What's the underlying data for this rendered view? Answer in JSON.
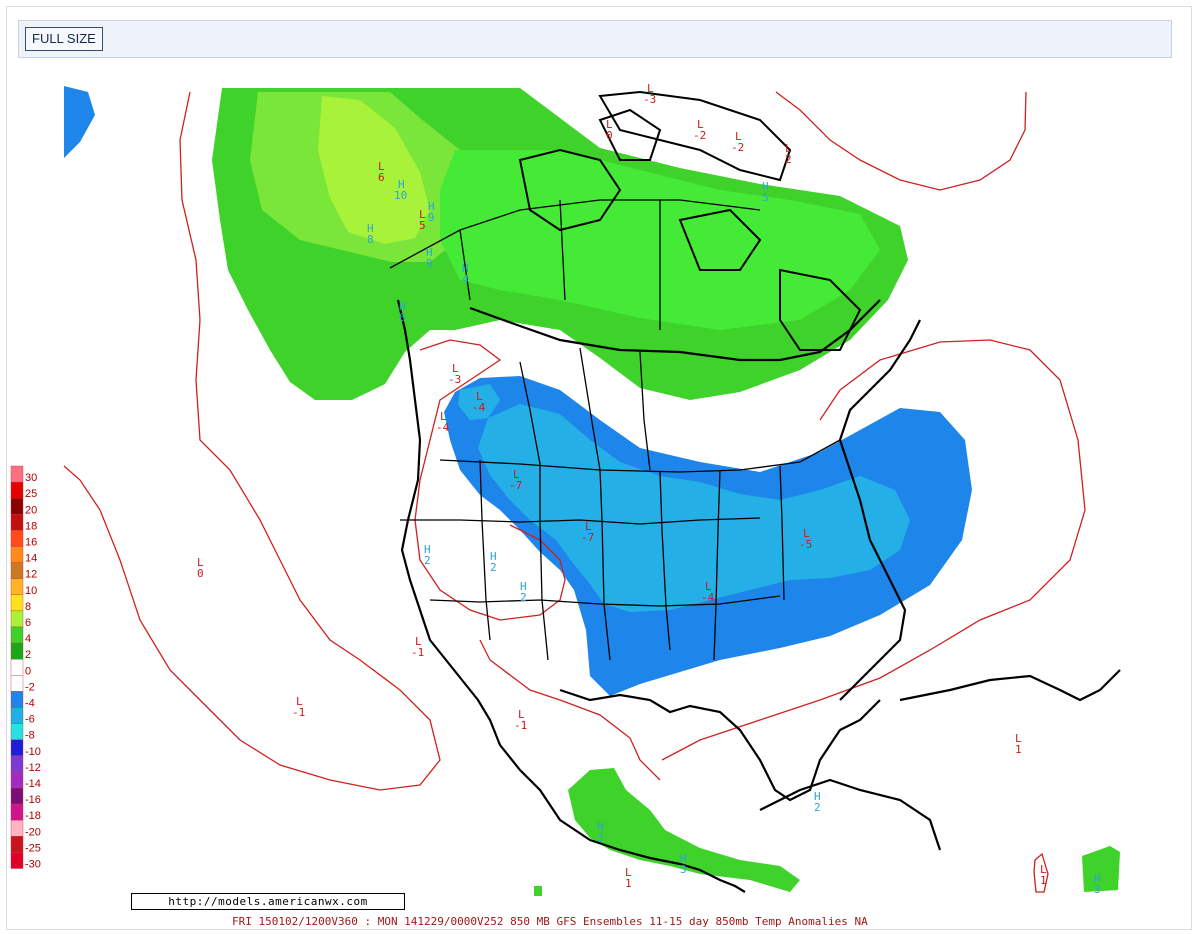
{
  "toolbar": {
    "full_size_label": "FULL SIZE"
  },
  "url_text": "http://models.americanwx.com",
  "footer_text": "FRI 150102/1200V360 : MON 141229/0000V252  850 MB GFS Ensembles 11-15 day 850mb Temp Anomalies NA",
  "legend": [
    {
      "label": "30",
      "color": "#ff6f82"
    },
    {
      "label": "25",
      "color": "#e60000"
    },
    {
      "label": "20",
      "color": "#8b0000"
    },
    {
      "label": "18",
      "color": "#c21010"
    },
    {
      "label": "16",
      "color": "#ff4a1a"
    },
    {
      "label": "14",
      "color": "#ff8c1a"
    },
    {
      "label": "12",
      "color": "#c97a22"
    },
    {
      "label": "10",
      "color": "#ffb428"
    },
    {
      "label": "8",
      "color": "#ffe21c"
    },
    {
      "label": "6",
      "color": "#a9f23a"
    },
    {
      "label": "4",
      "color": "#3ed22b"
    },
    {
      "label": "2",
      "color": "#1aa81a"
    },
    {
      "label": "0",
      "color": "#ffffff"
    },
    {
      "label": "-2",
      "color": "#ffffff"
    },
    {
      "label": "-4",
      "color": "#1e86ea"
    },
    {
      "label": "-6",
      "color": "#24b0e6"
    },
    {
      "label": "-8",
      "color": "#29e0e6"
    },
    {
      "label": "-10",
      "color": "#1e1edc"
    },
    {
      "label": "-12",
      "color": "#7a3cd2"
    },
    {
      "label": "-14",
      "color": "#a02cc0"
    },
    {
      "label": "-16",
      "color": "#7a0f78"
    },
    {
      "label": "-18",
      "color": "#d0148e"
    },
    {
      "label": "-20",
      "color": "#ffb4c4"
    },
    {
      "label": "-25",
      "color": "#c8141e"
    },
    {
      "label": "-30",
      "color": "#e0002a"
    }
  ],
  "markers": [
    {
      "kind": "L",
      "value": "-3",
      "color": "#d01818"
    },
    {
      "kind": "L",
      "value": "-2",
      "color": "#d01818"
    },
    {
      "kind": "L",
      "value": "-2",
      "color": "#d01818"
    },
    {
      "kind": "L",
      "value": "2",
      "color": "#d01818"
    },
    {
      "kind": "L",
      "value": "6",
      "color": "#d01818"
    },
    {
      "kind": "L",
      "value": "5",
      "color": "#d01818"
    },
    {
      "kind": "L",
      "value": "0",
      "color": "#d01818"
    },
    {
      "kind": "L",
      "value": "-3",
      "color": "#d01818"
    },
    {
      "kind": "L",
      "value": "-4",
      "color": "#d01818"
    },
    {
      "kind": "L",
      "value": "-4",
      "color": "#d01818"
    },
    {
      "kind": "L",
      "value": "-7",
      "color": "#d01818"
    },
    {
      "kind": "L",
      "value": "-7",
      "color": "#d01818"
    },
    {
      "kind": "L",
      "value": "-5",
      "color": "#d01818"
    },
    {
      "kind": "L",
      "value": "-4",
      "color": "#d01818"
    },
    {
      "kind": "L",
      "value": "0",
      "color": "#d01818"
    },
    {
      "kind": "L",
      "value": "-1",
      "color": "#d01818"
    },
    {
      "kind": "L",
      "value": "-1",
      "color": "#d01818"
    },
    {
      "kind": "L",
      "value": "-1",
      "color": "#d01818"
    },
    {
      "kind": "L",
      "value": "1",
      "color": "#d01818"
    },
    {
      "kind": "L",
      "value": "1",
      "color": "#d01818"
    },
    {
      "kind": "L",
      "value": "1",
      "color": "#d01818"
    },
    {
      "kind": "H",
      "value": "10",
      "color": "#2aa4d8"
    },
    {
      "kind": "H",
      "value": "9",
      "color": "#2aa4d8"
    },
    {
      "kind": "H",
      "value": "8",
      "color": "#2aa4d8"
    },
    {
      "kind": "H",
      "value": "9",
      "color": "#2aa4d8"
    },
    {
      "kind": "H",
      "value": "6",
      "color": "#2aa4d8"
    },
    {
      "kind": "H",
      "value": "2",
      "color": "#2aa4d8"
    },
    {
      "kind": "H",
      "value": "2",
      "color": "#2aa4d8"
    },
    {
      "kind": "H",
      "value": "2",
      "color": "#2aa4d8"
    },
    {
      "kind": "H",
      "value": "2",
      "color": "#2aa4d8"
    },
    {
      "kind": "H",
      "value": "3",
      "color": "#2aa4d8"
    },
    {
      "kind": "H",
      "value": "3",
      "color": "#2aa4d8"
    },
    {
      "kind": "H",
      "value": "4",
      "color": "#2aa4d8"
    },
    {
      "kind": "H",
      "value": "5",
      "color": "#2aa4d8"
    },
    {
      "kind": "H",
      "value": "3",
      "color": "#2aa4d8"
    }
  ]
}
